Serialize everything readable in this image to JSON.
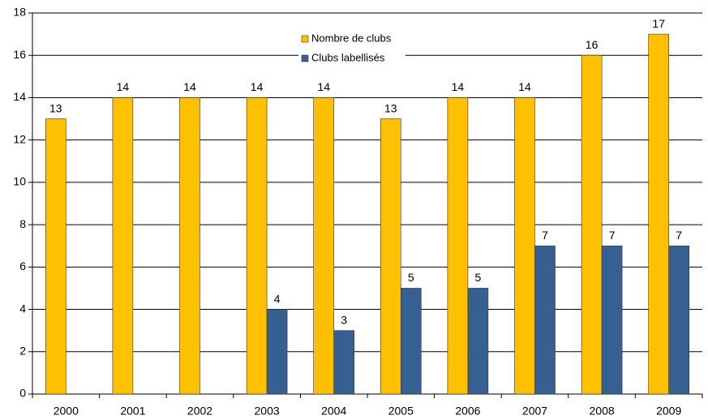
{
  "chart_data": {
    "type": "bar",
    "categories": [
      "2000",
      "2001",
      "2002",
      "2003",
      "2004",
      "2005",
      "2006",
      "2007",
      "2008",
      "2009"
    ],
    "series": [
      {
        "name": "Nombre de clubs",
        "color": "#ffc000",
        "values": [
          13,
          14,
          14,
          14,
          14,
          13,
          14,
          14,
          16,
          17
        ]
      },
      {
        "name": "Clubs labellisés",
        "color": "#376092",
        "values": [
          null,
          null,
          null,
          4,
          3,
          5,
          5,
          7,
          7,
          7
        ]
      }
    ],
    "ylim": [
      0,
      18
    ],
    "yticks": [
      0,
      2,
      4,
      6,
      8,
      10,
      12,
      14,
      16,
      18
    ],
    "grid": true,
    "legend": "top"
  }
}
